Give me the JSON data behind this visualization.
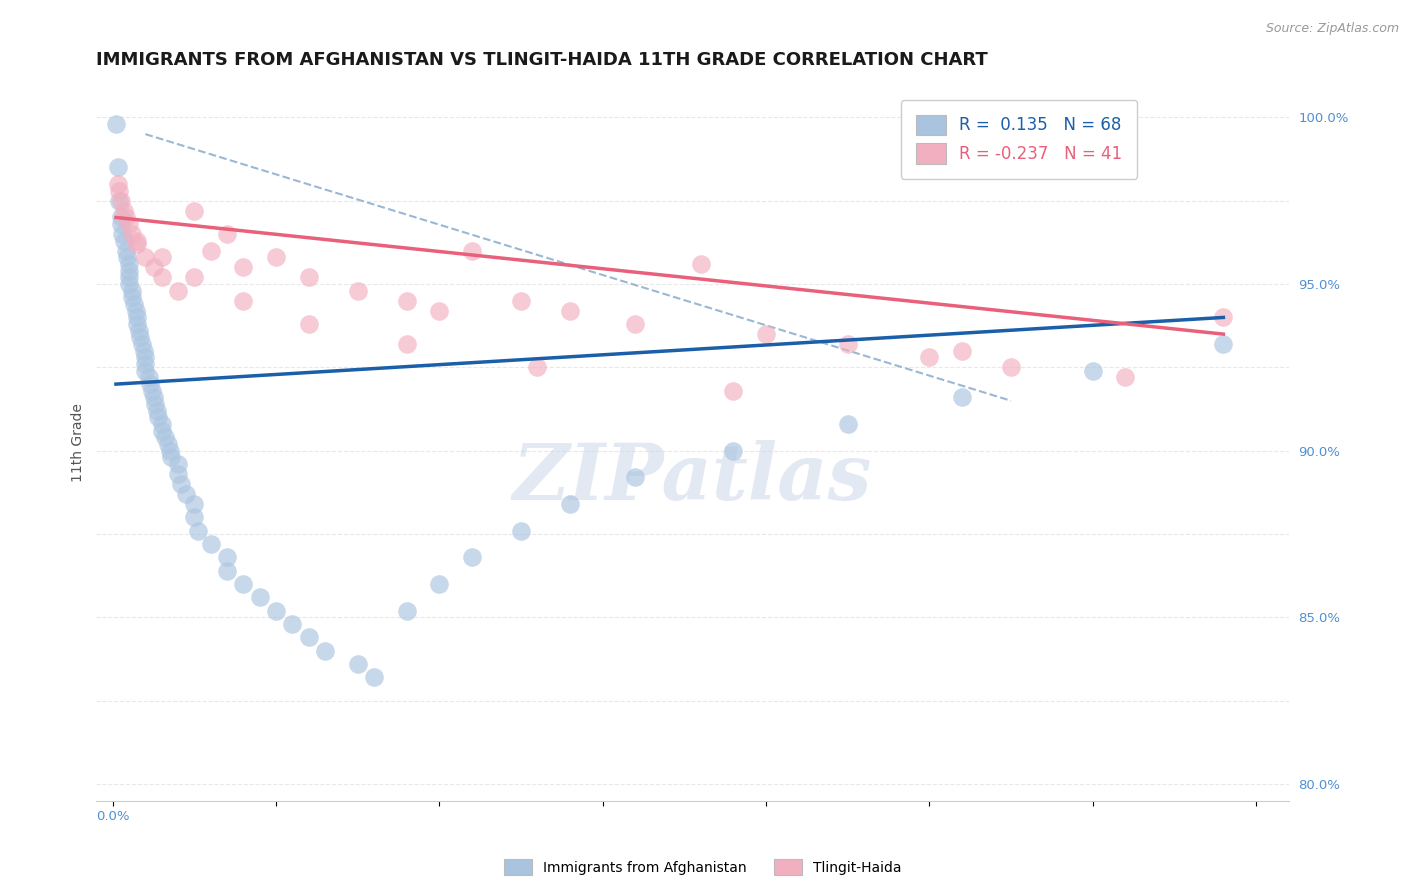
{
  "title": "IMMIGRANTS FROM AFGHANISTAN VS TLINGIT-HAIDA 11TH GRADE CORRELATION CHART",
  "source_text": "Source: ZipAtlas.com",
  "ylabel": "11th Grade",
  "blue_label": "Immigrants from Afghanistan",
  "pink_label": "Tlingit-Haida",
  "blue_R": 0.135,
  "blue_N": 68,
  "pink_R": -0.237,
  "pink_N": 41,
  "xlim": [
    -0.001,
    0.072
  ],
  "ylim": [
    0.795,
    1.01
  ],
  "ytick_vals": [
    0.8,
    0.85,
    0.9,
    0.95,
    1.0
  ],
  "ytick_labels": [
    "80.0%",
    "85.0%",
    "90.0%",
    "95.0%",
    "100.0%"
  ],
  "xtick_label_0": "0.0%",
  "blue_color": "#aac4e0",
  "pink_color": "#f2afc0",
  "blue_line_color": "#1a5fa8",
  "pink_line_color": "#e8607a",
  "ref_line_color": "#90b0d0",
  "background_color": "#ffffff",
  "grid_color": "#e8e8e8",
  "blue_scatter_x": [
    0.0002,
    0.0003,
    0.0004,
    0.0005,
    0.0005,
    0.0006,
    0.0007,
    0.0008,
    0.0009,
    0.001,
    0.001,
    0.001,
    0.001,
    0.0012,
    0.0012,
    0.0013,
    0.0014,
    0.0015,
    0.0015,
    0.0016,
    0.0017,
    0.0018,
    0.0019,
    0.002,
    0.002,
    0.002,
    0.0022,
    0.0023,
    0.0024,
    0.0025,
    0.0026,
    0.0027,
    0.0028,
    0.003,
    0.003,
    0.0032,
    0.0034,
    0.0035,
    0.0036,
    0.004,
    0.004,
    0.0042,
    0.0045,
    0.005,
    0.005,
    0.0052,
    0.006,
    0.007,
    0.007,
    0.008,
    0.009,
    0.01,
    0.011,
    0.012,
    0.013,
    0.015,
    0.016,
    0.018,
    0.02,
    0.022,
    0.025,
    0.028,
    0.032,
    0.038,
    0.045,
    0.052,
    0.06,
    0.068
  ],
  "blue_scatter_y": [
    0.998,
    0.985,
    0.975,
    0.97,
    0.968,
    0.965,
    0.963,
    0.96,
    0.958,
    0.956,
    0.954,
    0.952,
    0.95,
    0.948,
    0.946,
    0.944,
    0.942,
    0.94,
    0.938,
    0.936,
    0.934,
    0.932,
    0.93,
    0.928,
    0.926,
    0.924,
    0.922,
    0.92,
    0.918,
    0.916,
    0.914,
    0.912,
    0.91,
    0.908,
    0.906,
    0.904,
    0.902,
    0.9,
    0.898,
    0.896,
    0.893,
    0.89,
    0.887,
    0.884,
    0.88,
    0.876,
    0.872,
    0.868,
    0.864,
    0.86,
    0.856,
    0.852,
    0.848,
    0.844,
    0.84,
    0.836,
    0.832,
    0.852,
    0.86,
    0.868,
    0.876,
    0.884,
    0.892,
    0.9,
    0.908,
    0.916,
    0.924,
    0.932
  ],
  "pink_scatter_x": [
    0.0003,
    0.0005,
    0.0007,
    0.001,
    0.0012,
    0.0015,
    0.002,
    0.0025,
    0.003,
    0.004,
    0.005,
    0.006,
    0.007,
    0.008,
    0.01,
    0.012,
    0.015,
    0.018,
    0.02,
    0.022,
    0.025,
    0.028,
    0.032,
    0.036,
    0.04,
    0.045,
    0.05,
    0.055,
    0.062,
    0.068,
    0.0004,
    0.0008,
    0.0015,
    0.003,
    0.005,
    0.008,
    0.012,
    0.018,
    0.026,
    0.038,
    0.052
  ],
  "pink_scatter_y": [
    0.98,
    0.975,
    0.972,
    0.968,
    0.965,
    0.962,
    0.958,
    0.955,
    0.952,
    0.948,
    0.972,
    0.96,
    0.965,
    0.955,
    0.958,
    0.952,
    0.948,
    0.945,
    0.942,
    0.96,
    0.945,
    0.942,
    0.938,
    0.956,
    0.935,
    0.932,
    0.928,
    0.925,
    0.922,
    0.94,
    0.978,
    0.97,
    0.963,
    0.958,
    0.952,
    0.945,
    0.938,
    0.932,
    0.925,
    0.918,
    0.93
  ],
  "title_fontsize": 13,
  "axis_label_fontsize": 10,
  "tick_fontsize": 9.5,
  "legend_fontsize": 12
}
